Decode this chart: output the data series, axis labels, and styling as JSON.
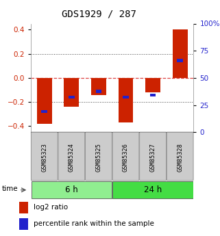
{
  "title": "GDS1929 / 287",
  "samples": [
    "GSM85323",
    "GSM85324",
    "GSM85325",
    "GSM85326",
    "GSM85327",
    "GSM85328"
  ],
  "log2_ratio": [
    -0.38,
    -0.24,
    -0.14,
    -0.37,
    -0.12,
    0.4
  ],
  "percentile_rank": [
    15,
    30,
    36,
    30,
    32,
    68
  ],
  "groups": [
    {
      "label": "6 h",
      "indices": [
        0,
        1,
        2
      ],
      "color": "#90EE90"
    },
    {
      "label": "24 h",
      "indices": [
        3,
        4,
        5
      ],
      "color": "#44DD44"
    }
  ],
  "ylim": [
    -0.45,
    0.45
  ],
  "y2lim": [
    0,
    100
  ],
  "yticks": [
    -0.4,
    -0.2,
    0.0,
    0.2,
    0.4
  ],
  "y2ticks": [
    0,
    25,
    50,
    75,
    100
  ],
  "hline_zero_color": "#DD4444",
  "hline_dotted_color": "#444444",
  "bar_color_red": "#CC2200",
  "bar_color_blue": "#2222CC",
  "bar_width": 0.55,
  "blue_bar_width": 0.22,
  "background_color": "#ffffff",
  "plot_bg_color": "#ffffff",
  "left_tick_color": "#CC2200",
  "right_tick_color": "#2222CC",
  "legend_log2": "log2 ratio",
  "legend_pct": "percentile rank within the sample"
}
